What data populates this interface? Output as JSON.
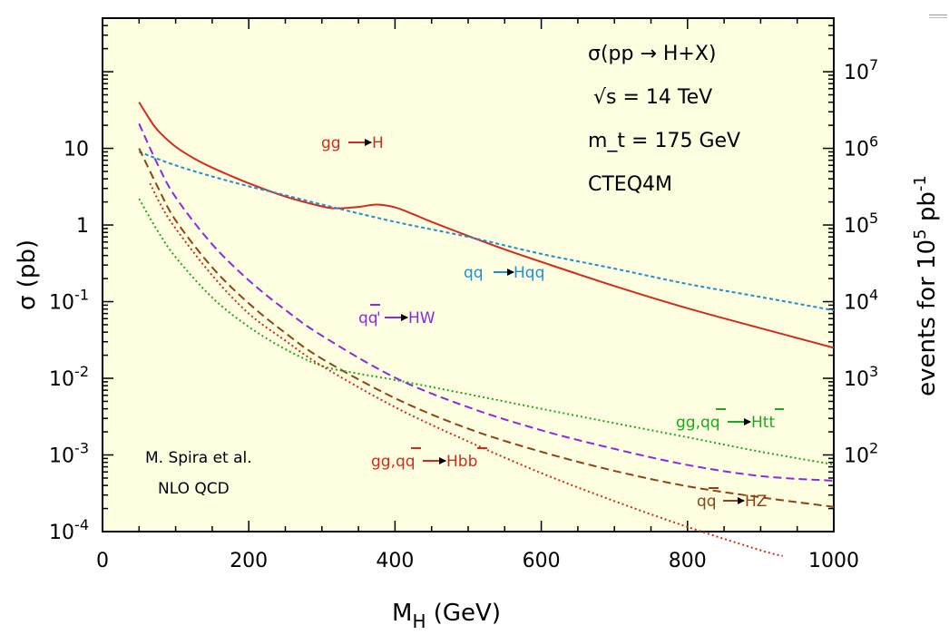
{
  "chart_data": {
    "type": "line",
    "xlabel": "M_H (GeV)",
    "xlabel_main": "M",
    "xlabel_sub": "H",
    "xlabel_unit": " (GeV)",
    "ylabel": "σ (pb)",
    "y2label": "events for 10^5 pb^-1",
    "y2label_main": "events for 10",
    "y2label_sup1": "5",
    "y2label_mid": " pb",
    "y2label_sup2": "-1",
    "xlim": [
      0,
      1000
    ],
    "ylim": [
      0.0001,
      500
    ],
    "yscale": "log",
    "x_ticks": [
      "0",
      "200",
      "400",
      "600",
      "800",
      "1000"
    ],
    "y_ticks": [
      {
        "value": 10,
        "label": "10"
      },
      {
        "value": 1,
        "label": "1"
      },
      {
        "value": 0.1,
        "base": "10",
        "exp": "-1"
      },
      {
        "value": 0.01,
        "base": "10",
        "exp": "-2"
      },
      {
        "value": 0.001,
        "base": "10",
        "exp": "-3"
      },
      {
        "value": 0.0001,
        "base": "10",
        "exp": "-4"
      }
    ],
    "y2_ticks": [
      {
        "value": 100,
        "base": "10",
        "exp": "7"
      },
      {
        "value": 10,
        "base": "10",
        "exp": "6"
      },
      {
        "value": 1,
        "base": "10",
        "exp": "5"
      },
      {
        "value": 0.1,
        "base": "10",
        "exp": "4"
      },
      {
        "value": 0.01,
        "base": "10",
        "exp": "3"
      },
      {
        "value": 0.001,
        "base": "10",
        "exp": "2"
      }
    ],
    "annotations": {
      "process": "σ(pp → H+X)",
      "energy": "√s = 14 TeV",
      "mtop": "m_t = 175 GeV",
      "pdf": "CTEQ4M",
      "author": "M. Spira et al.",
      "order": "NLO  QCD"
    },
    "series": [
      {
        "name": "gg → H",
        "color": "#d42a1e",
        "dash": "solid",
        "x": [
          50,
          60,
          70,
          80,
          100,
          125,
          150,
          175,
          200,
          250,
          300,
          320,
          350,
          375,
          400,
          425,
          450,
          500,
          550,
          600,
          700,
          800,
          900,
          1000
        ],
        "y": [
          40,
          28,
          20,
          15.5,
          10.5,
          7.4,
          5.6,
          4.4,
          3.5,
          2.35,
          1.75,
          1.65,
          1.72,
          1.85,
          1.7,
          1.38,
          1.1,
          0.72,
          0.48,
          0.33,
          0.16,
          0.082,
          0.045,
          0.025
        ]
      },
      {
        "name": "qq → Hqq",
        "color": "#1e8fd4",
        "dash": "short",
        "x": [
          50,
          100,
          150,
          200,
          250,
          300,
          400,
          500,
          600,
          700,
          800,
          900,
          1000
        ],
        "y": [
          9,
          6.0,
          4.3,
          3.2,
          2.45,
          1.85,
          1.1,
          0.7,
          0.42,
          0.27,
          0.17,
          0.115,
          0.077
        ]
      },
      {
        "name": "qq̄' → HW",
        "color": "#8a2be2",
        "dash": "long",
        "x": [
          50,
          75,
          100,
          150,
          200,
          250,
          300,
          400,
          500,
          600,
          700,
          800,
          900,
          1000
        ],
        "y": [
          21,
          6.3,
          2.3,
          0.56,
          0.19,
          0.078,
          0.036,
          0.0102,
          0.0042,
          0.0021,
          0.0012,
          0.00074,
          0.00053,
          0.00046
        ]
      },
      {
        "name": "qq̄ → HZ",
        "color": "#8b4513",
        "dash": "long",
        "x": [
          50,
          75,
          100,
          150,
          200,
          250,
          300,
          400,
          500,
          600,
          700,
          800,
          900,
          1000
        ],
        "y": [
          10,
          3.2,
          1.15,
          0.28,
          0.095,
          0.039,
          0.018,
          0.0055,
          0.0022,
          0.0011,
          0.00062,
          0.00039,
          0.00028,
          0.00021
        ]
      },
      {
        "name": "gg,qq̄ → Htt̄",
        "color": "#1ea81e",
        "dash": "dot",
        "x": [
          50,
          75,
          100,
          150,
          200,
          250,
          300,
          350,
          400,
          500,
          600,
          700,
          800,
          900,
          1000
        ],
        "y": [
          2.2,
          0.85,
          0.38,
          0.113,
          0.047,
          0.024,
          0.0145,
          0.0115,
          0.0095,
          0.0062,
          0.004,
          0.0026,
          0.0017,
          0.0011,
          0.00075
        ]
      },
      {
        "name": "gg,qq̄ → Hbb̄",
        "color": "#d42a1e",
        "dash": "dot",
        "x": [
          65,
          80,
          100,
          150,
          200,
          250,
          300,
          400,
          500,
          600,
          700,
          800,
          900,
          930
        ],
        "y": [
          3.5,
          1.8,
          0.9,
          0.22,
          0.07,
          0.031,
          0.0145,
          0.0042,
          0.0015,
          0.00058,
          0.00025,
          0.000115,
          5.7e-05,
          4.8e-05
        ]
      }
    ]
  },
  "curve_labels": {
    "ggh_a": "gg",
    "ggh_b": "H",
    "qqh_a": "qq",
    "qqh_b": "Hqq",
    "hw_a": "qq",
    "hw_b": "'",
    "hw_c": "HW",
    "htt_a": "gg,qq",
    "htt_b": "Htt",
    "hbb_a": "gg,qq",
    "hbb_b": "Hbb",
    "hz_a": "qq",
    "hz_b": "HZ"
  }
}
